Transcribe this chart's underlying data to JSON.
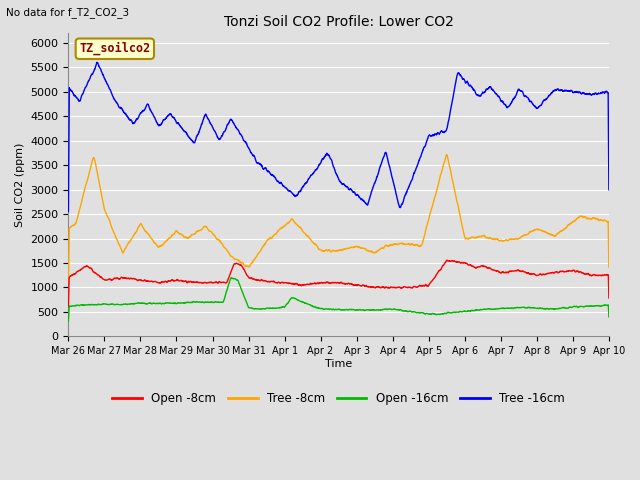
{
  "title": "Tonzi Soil CO2 Profile: Lower CO2",
  "top_left_note": "No data for f_T2_CO2_3",
  "ylabel": "Soil CO2 (ppm)",
  "xlabel": "Time",
  "legend_label": "TZ_soilco2",
  "ylim": [
    0,
    6200
  ],
  "yticks": [
    0,
    500,
    1000,
    1500,
    2000,
    2500,
    3000,
    3500,
    4000,
    4500,
    5000,
    5500,
    6000
  ],
  "xtick_labels": [
    "Mar 26",
    "Mar 27",
    "Mar 28",
    "Mar 29",
    "Mar 30",
    "Mar 31",
    "Apr 1",
    "Apr 2",
    "Apr 3",
    "Apr 4",
    "Apr 5",
    "Apr 6",
    "Apr 7",
    "Apr 8",
    "Apr 9",
    "Apr 10"
  ],
  "background_color": "#e0e0e0",
  "plot_bg_color": "#e0e0e0",
  "grid_color": "#ffffff",
  "line_colors": {
    "open_8cm": "#ff0000",
    "tree_8cm": "#ffa500",
    "open_16cm": "#00bb00",
    "tree_16cm": "#0000ff"
  },
  "legend_entries": [
    "Open -8cm",
    "Tree -8cm",
    "Open -16cm",
    "Tree -16cm"
  ]
}
